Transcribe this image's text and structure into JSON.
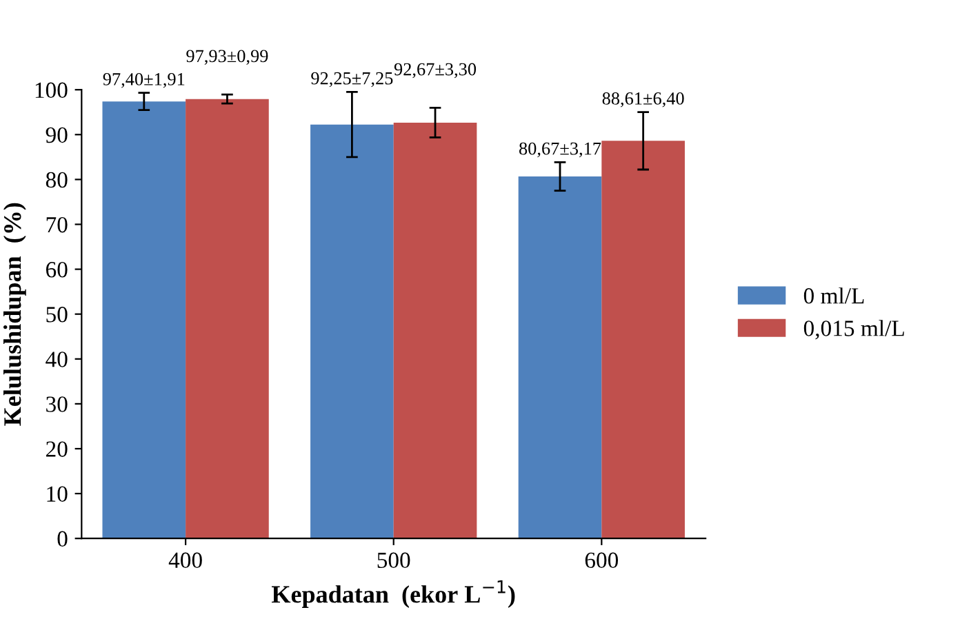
{
  "chart_data": {
    "type": "bar",
    "xlabel": "Kepadatan  (ekor L$^{−1}$)",
    "ylabel": "Kelulushidupan  (%)",
    "categories": [
      "400",
      "500",
      "600"
    ],
    "series": [
      {
        "name": "0 ml/L",
        "color": "#4f81bd",
        "values": [
          97.4,
          92.25,
          80.67
        ],
        "errors": [
          1.91,
          7.25,
          3.17
        ],
        "value_labels": [
          "97,40±1,91",
          "92,25±7,25",
          "80,67±3,17"
        ]
      },
      {
        "name": "0,015 ml/L",
        "color": "#c0504d",
        "values": [
          97.93,
          92.67,
          88.61
        ],
        "errors": [
          0.99,
          3.3,
          6.4
        ],
        "value_labels": [
          "97,93±0,99",
          "92,67±3,30",
          "88,61±6,40"
        ]
      }
    ],
    "ylim": [
      0,
      100
    ],
    "yticks": [
      0,
      10,
      20,
      30,
      40,
      50,
      60,
      70,
      80,
      90,
      100
    ],
    "grid": false,
    "legend": "right"
  }
}
